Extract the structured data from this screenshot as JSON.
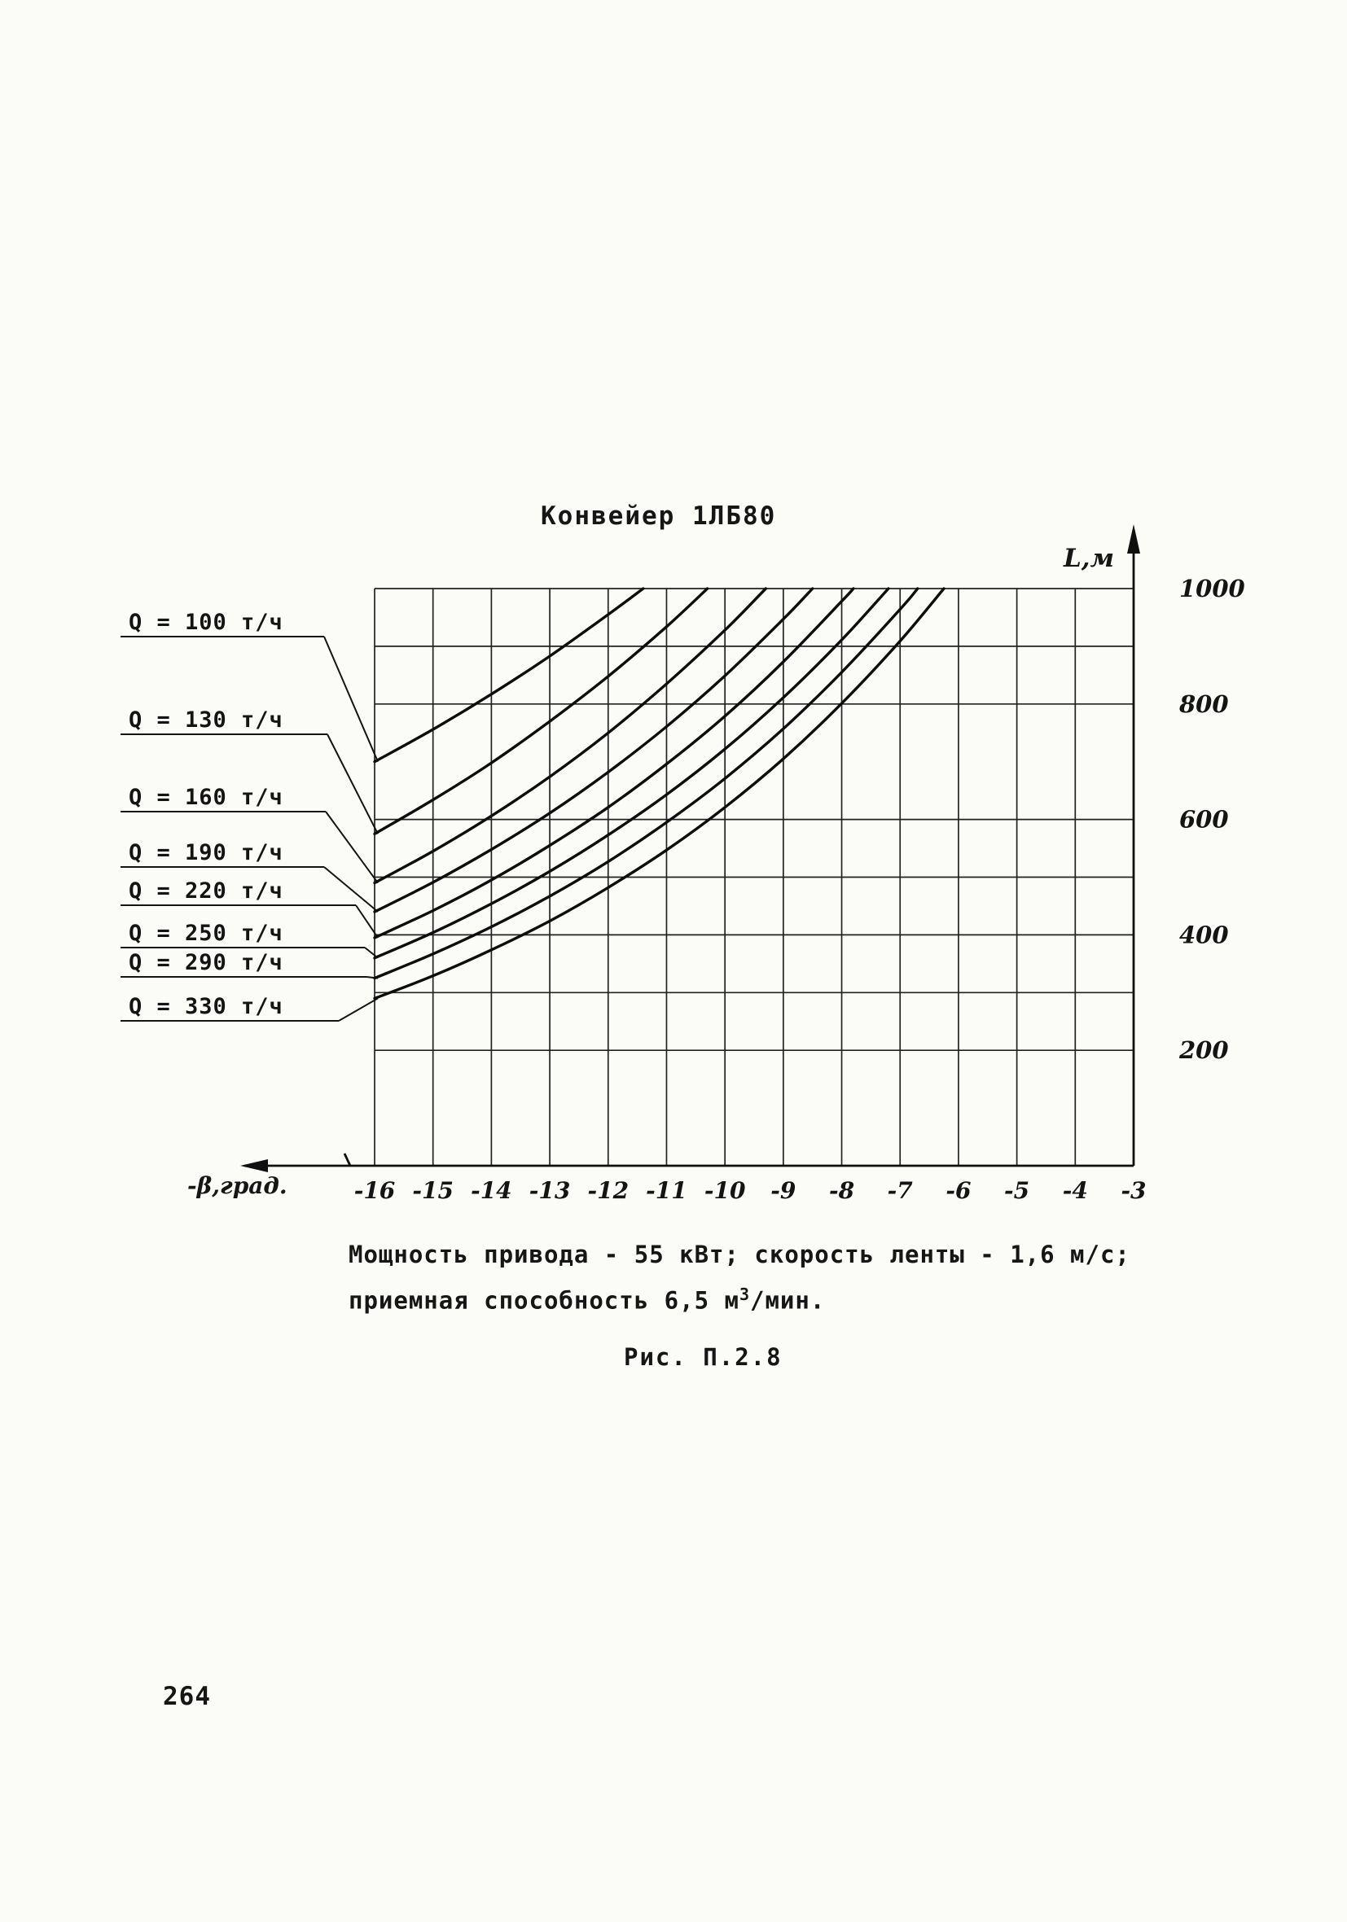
{
  "title": "Конвейер 1ЛБ80",
  "caption": {
    "line1": "Мощность привода - 55 кВт; скорость ленты - 1,6 м/с;",
    "line2_prefix": "приемная способность 6,5 м",
    "line2_sup": "3",
    "line2_suffix": "/мин.",
    "figure": "Рис. П.2.8"
  },
  "page_number": "264",
  "colors": {
    "ink": "#141414",
    "paper": "#fbfbf8"
  },
  "chart_data": {
    "type": "line",
    "title": "Конвейер 1ЛБ80",
    "xlabel": "-β,град.",
    "ylabel": "L,м",
    "xlim": [
      -16,
      -3
    ],
    "ylim": [
      0,
      1000
    ],
    "grid": true,
    "legend_position": "left-labels-with-leader-lines",
    "x_ticks": [
      -16,
      -15,
      -14,
      -13,
      -12,
      -11,
      -10,
      -9,
      -8,
      -7,
      -6,
      -5,
      -4,
      -3
    ],
    "x_tick_labels": [
      "-16",
      "-15",
      "-14",
      "-13",
      "-12",
      "-11",
      "-10",
      "-9",
      "-8",
      "-7",
      "-6",
      "-5",
      "-4",
      "-3"
    ],
    "y_ticks": [
      200,
      400,
      600,
      800,
      1000
    ],
    "y_tick_labels": [
      "200",
      "400",
      "600",
      "800",
      "1000"
    ],
    "y_gridlines": [
      200,
      300,
      400,
      500,
      600,
      800,
      900,
      1000
    ],
    "series": [
      {
        "name": "Q = 100 т/ч",
        "points": [
          [
            -16,
            700
          ],
          [
            -15,
            756
          ],
          [
            -14,
            817
          ],
          [
            -13,
            883
          ],
          [
            -12,
            955
          ],
          [
            -11.4,
            1000
          ]
        ]
      },
      {
        "name": "Q = 130 т/ч",
        "points": [
          [
            -16,
            575
          ],
          [
            -15,
            634
          ],
          [
            -14,
            698
          ],
          [
            -13,
            770
          ],
          [
            -12,
            848
          ],
          [
            -11,
            934
          ],
          [
            -10.3,
            1000
          ]
        ]
      },
      {
        "name": "Q = 160 т/ч",
        "points": [
          [
            -16,
            490
          ],
          [
            -15,
            545
          ],
          [
            -14,
            606
          ],
          [
            -13,
            674
          ],
          [
            -12,
            750
          ],
          [
            -11,
            835
          ],
          [
            -10,
            928
          ],
          [
            -9.3,
            1000
          ]
        ]
      },
      {
        "name": "Q = 190 т/ч",
        "points": [
          [
            -16,
            440
          ],
          [
            -15,
            491
          ],
          [
            -14,
            548
          ],
          [
            -13,
            611
          ],
          [
            -12,
            682
          ],
          [
            -11,
            761
          ],
          [
            -10,
            849
          ],
          [
            -9,
            947
          ],
          [
            -8.5,
            1000
          ]
        ]
      },
      {
        "name": "Q = 220 т/ч",
        "points": [
          [
            -16,
            395
          ],
          [
            -15,
            442
          ],
          [
            -14,
            495
          ],
          [
            -13,
            555
          ],
          [
            -12,
            621
          ],
          [
            -11,
            696
          ],
          [
            -10,
            779
          ],
          [
            -9,
            873
          ],
          [
            -8,
            978
          ],
          [
            -7.8,
            1000
          ]
        ]
      },
      {
        "name": "Q = 250 т/ч",
        "points": [
          [
            -16,
            360
          ],
          [
            -15,
            404
          ],
          [
            -14,
            454
          ],
          [
            -13,
            510
          ],
          [
            -12,
            573
          ],
          [
            -11,
            643
          ],
          [
            -10,
            722
          ],
          [
            -9,
            811
          ],
          [
            -8,
            911
          ],
          [
            -7.2,
            1000
          ]
        ]
      },
      {
        "name": "Q = 290 т/ч",
        "points": [
          [
            -16,
            325
          ],
          [
            -15,
            367
          ],
          [
            -14,
            414
          ],
          [
            -13,
            467
          ],
          [
            -12,
            527
          ],
          [
            -11,
            595
          ],
          [
            -10,
            671
          ],
          [
            -9,
            757
          ],
          [
            -8,
            855
          ],
          [
            -7,
            964
          ],
          [
            -6.7,
            1000
          ]
        ]
      },
      {
        "name": "Q = 330 т/ч",
        "points": [
          [
            -16,
            290
          ],
          [
            -15,
            329
          ],
          [
            -14,
            374
          ],
          [
            -13,
            424
          ],
          [
            -12,
            482
          ],
          [
            -11,
            547
          ],
          [
            -10,
            621
          ],
          [
            -9,
            705
          ],
          [
            -8,
            801
          ],
          [
            -7,
            909
          ],
          [
            -6.25,
            1000
          ]
        ]
      }
    ]
  }
}
